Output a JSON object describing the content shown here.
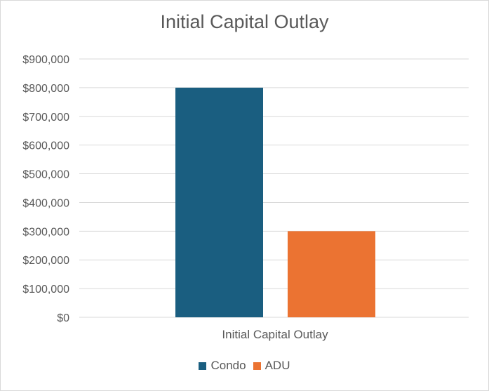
{
  "chart_data": {
    "type": "bar",
    "title": "Initial Capital Outlay",
    "categories": [
      "Initial Capital Outlay"
    ],
    "series": [
      {
        "name": "Condo",
        "values": [
          800000
        ],
        "color": "#1a5e80"
      },
      {
        "name": "ADU",
        "values": [
          300000
        ],
        "color": "#eb7332"
      }
    ],
    "ylim": [
      0,
      900000
    ],
    "yticks": [
      0,
      100000,
      200000,
      300000,
      400000,
      500000,
      600000,
      700000,
      800000,
      900000
    ],
    "ytick_labels": [
      "$0",
      "$100,000",
      "$200,000",
      "$300,000",
      "$400,000",
      "$500,000",
      "$600,000",
      "$700,000",
      "$800,000",
      "$900,000"
    ],
    "xlabel": "",
    "ylabel": "",
    "grid": true,
    "legend_position": "bottom",
    "gridline_color": "#d9d9d9",
    "text_color": "#595959"
  }
}
